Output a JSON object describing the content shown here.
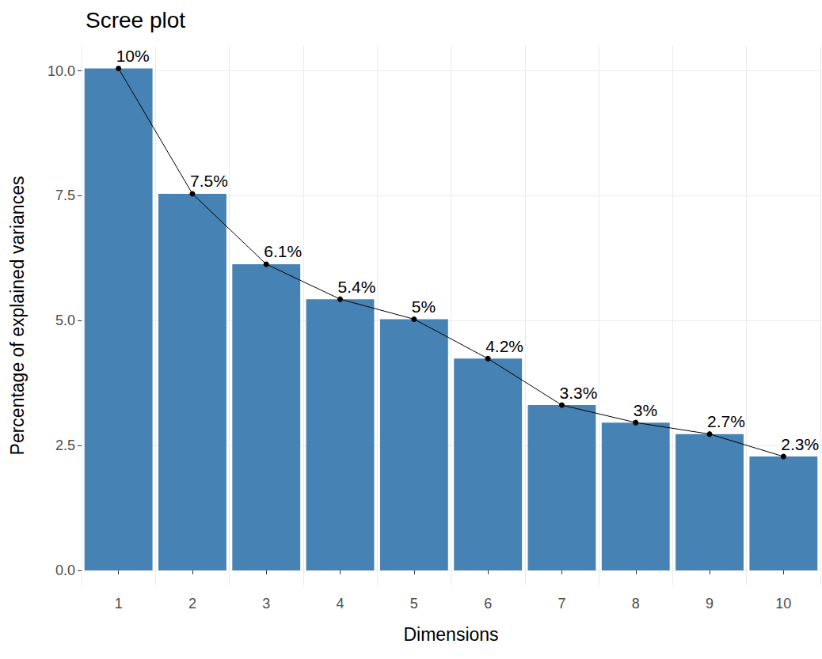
{
  "chart_data": {
    "type": "bar",
    "title": "Scree plot",
    "x_label": "Dimensions",
    "y_label": "Percentage of explained variances",
    "categories": [
      "1",
      "2",
      "3",
      "4",
      "5",
      "6",
      "7",
      "8",
      "9",
      "10"
    ],
    "series": [
      {
        "type": "bar",
        "color": "#4682B4",
        "values": [
          10.05,
          7.54,
          6.13,
          5.43,
          5.03,
          4.24,
          3.31,
          2.96,
          2.73,
          2.28
        ]
      },
      {
        "type": "line",
        "color": "#000000",
        "marker": "circle",
        "data_labels": true,
        "values": [
          10.05,
          7.54,
          6.13,
          5.43,
          5.03,
          4.24,
          3.31,
          2.96,
          2.73,
          2.28
        ],
        "value_labels": [
          "10%",
          "7.5%",
          "6.1%",
          "5.4%",
          "5%",
          "4.2%",
          "3.3%",
          "3%",
          "2.7%",
          "2.3%"
        ]
      }
    ],
    "ylim": [
      -0.3,
      10.5
    ],
    "yticks": [
      {
        "value": 0,
        "label": "0.0"
      },
      2.5,
      {
        "value": 5,
        "label": "5.0"
      },
      7.5,
      {
        "value": 10,
        "label": "10.0"
      }
    ],
    "grid": true
  }
}
